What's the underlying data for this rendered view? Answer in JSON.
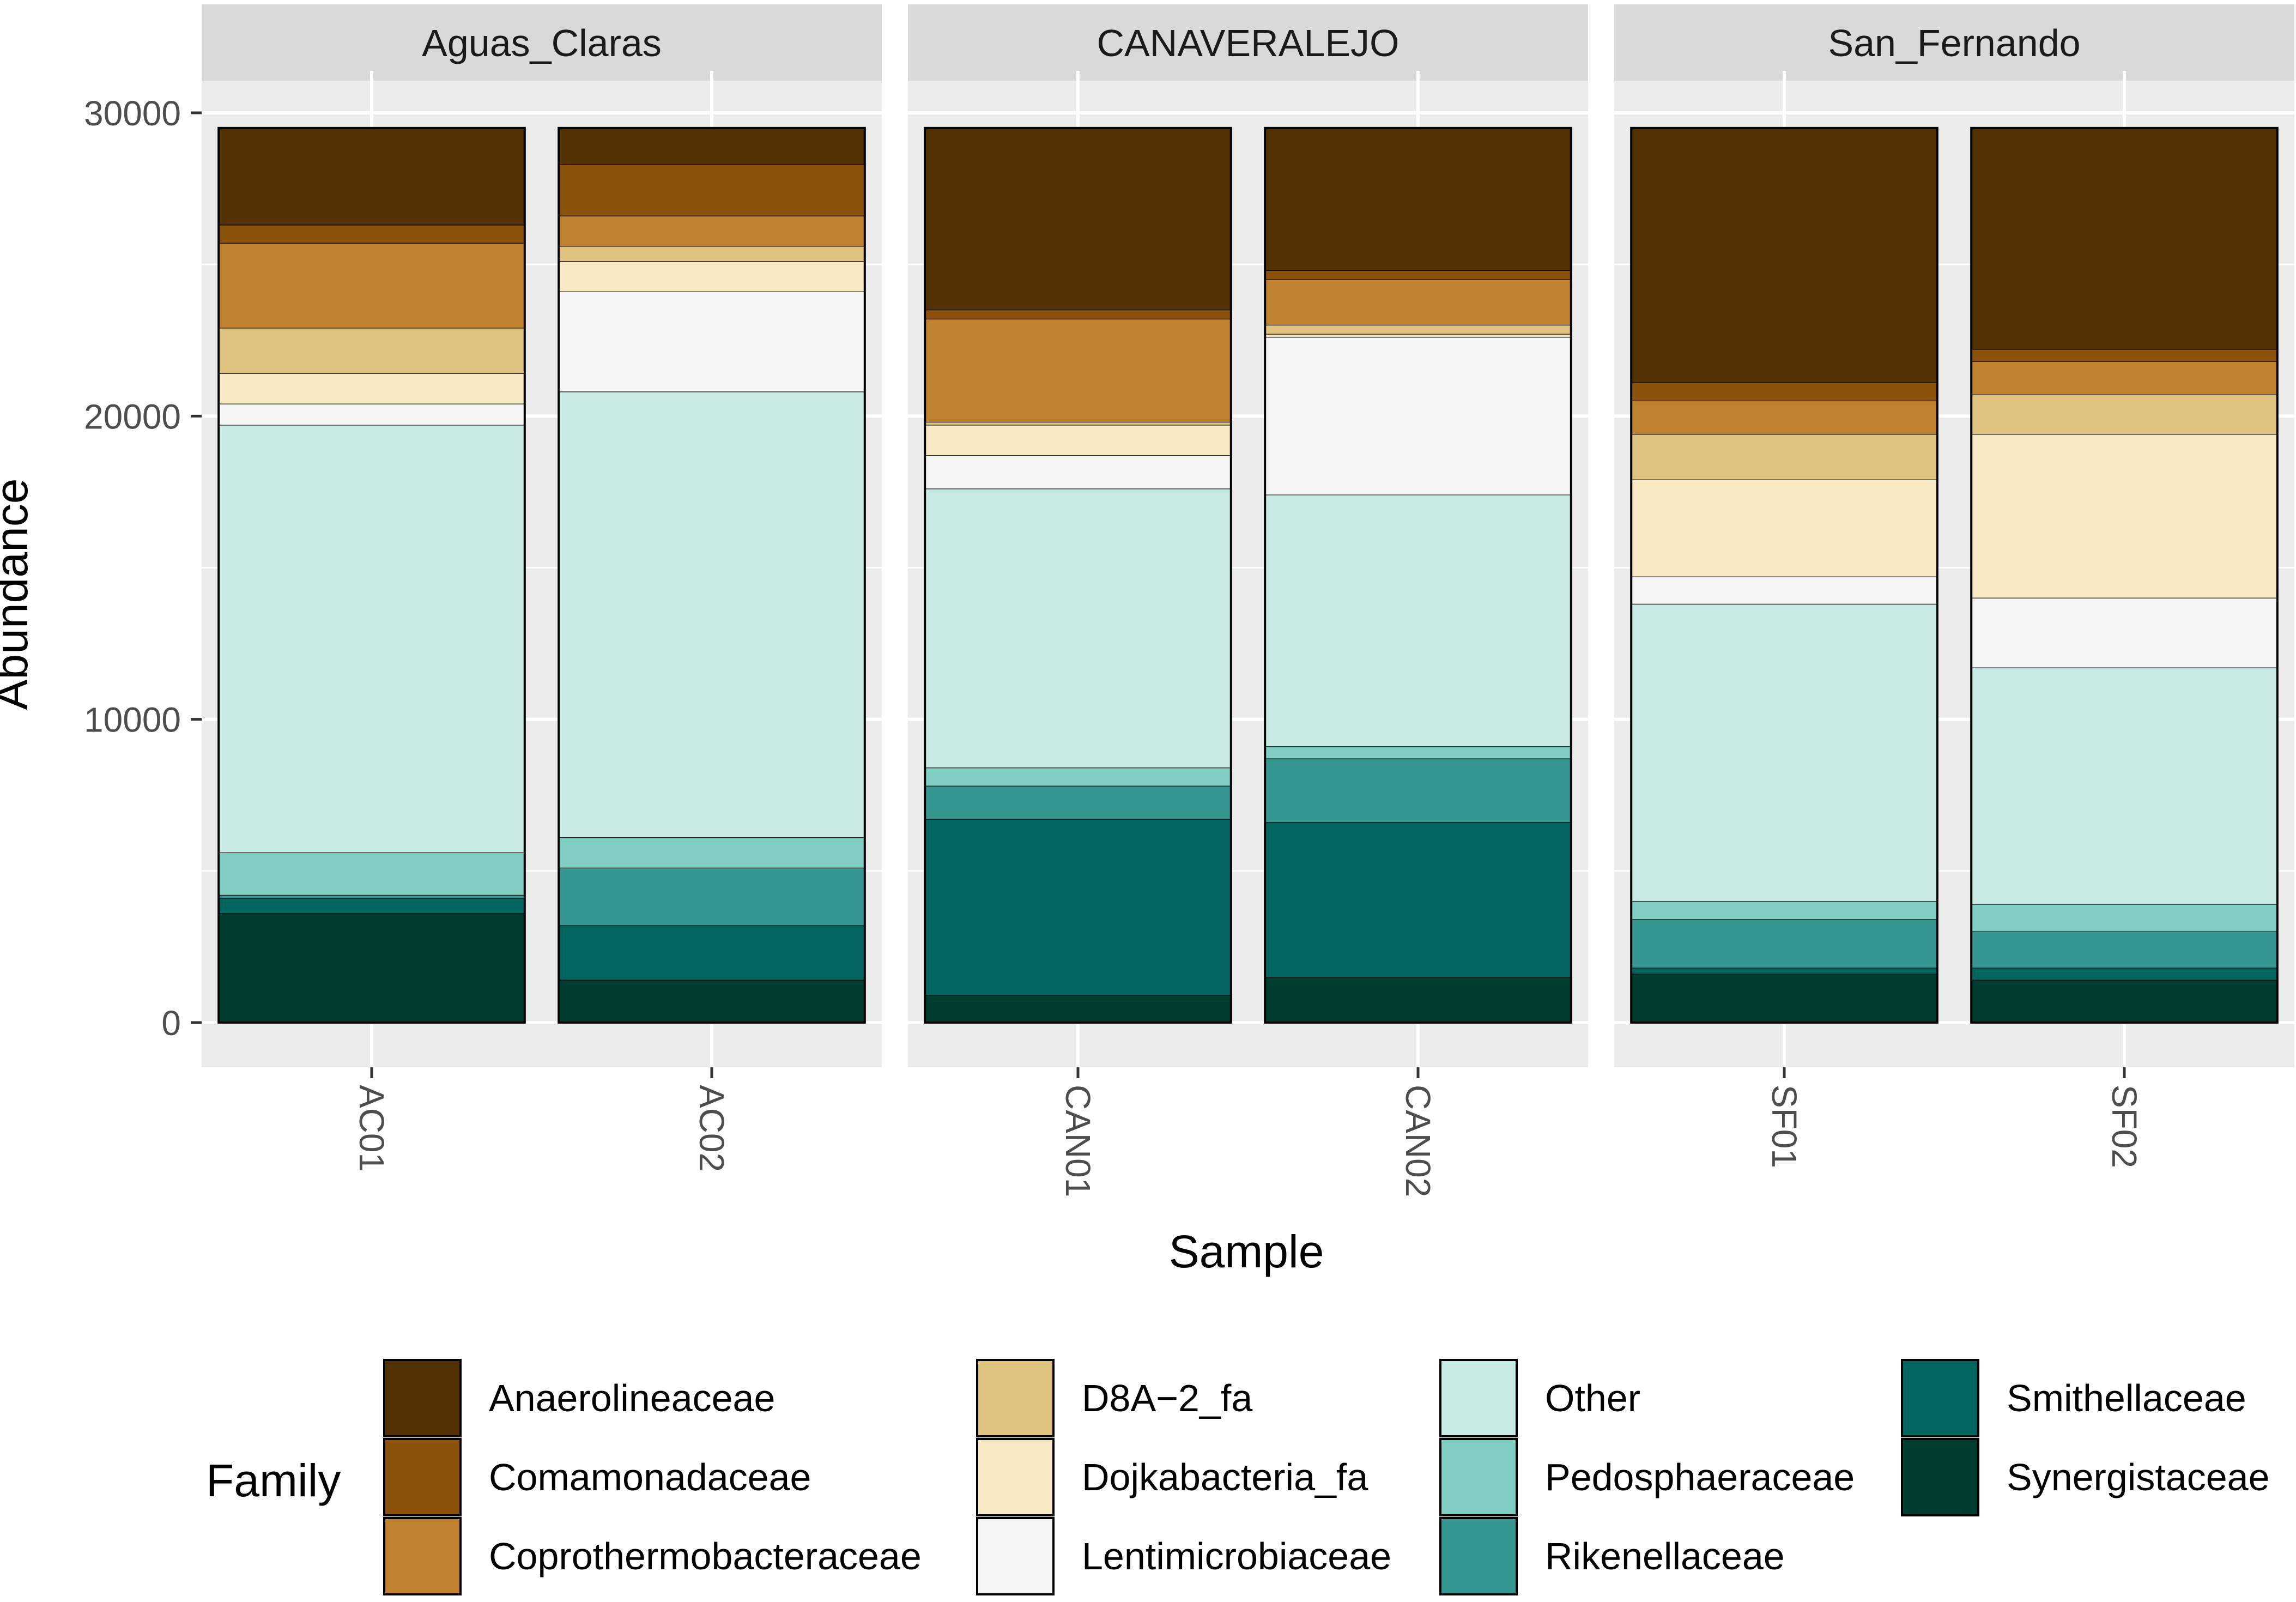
{
  "chart_data": {
    "type": "bar",
    "stacked": true,
    "faceted": true,
    "xlabel": "Sample",
    "ylabel": "Abundance",
    "ylim": [
      0,
      30000
    ],
    "yticks": [
      0,
      10000,
      20000,
      30000
    ],
    "grid": true,
    "legend": {
      "title": "Family",
      "position": "bottom"
    },
    "families": [
      "Synergistaceae",
      "Smithellaceae",
      "Rikenellaceae",
      "Pedosphaeraceae",
      "Other",
      "Lentimicrobiaceae",
      "Dojkabacteria_fa",
      "D8A−2_fa",
      "Coprothermobacteraceae",
      "Comamonadaceae",
      "Anaerolineaceae"
    ],
    "legend_order": [
      "Anaerolineaceae",
      "Comamonadaceae",
      "Coprothermobacteraceae",
      "D8A−2_fa",
      "Dojkabacteria_fa",
      "Lentimicrobiaceae",
      "Other",
      "Pedosphaeraceae",
      "Rikenellaceae",
      "Smithellaceae",
      "Synergistaceae"
    ],
    "colors": {
      "Anaerolineaceae": "#543005",
      "Comamonadaceae": "#8C510A",
      "Coprothermobacteraceae": "#BF812D",
      "D8A−2_fa": "#DFC27D",
      "Dojkabacteria_fa": "#F6E8C3",
      "Lentimicrobiaceae": "#F5F5F5",
      "Other": "#C7EAE5",
      "Pedosphaeraceae": "#80CDC1",
      "Rikenellaceae": "#35978F",
      "Smithellaceae": "#01665E",
      "Synergistaceae": "#003C30"
    },
    "facets": [
      {
        "name": "Aguas_Claras",
        "samples": [
          {
            "name": "AC01",
            "values": {
              "Synergistaceae": 3600,
              "Smithellaceae": 500,
              "Rikenellaceae": 100,
              "Pedosphaeraceae": 1400,
              "Other": 14100,
              "Lentimicrobiaceae": 700,
              "Dojkabacteria_fa": 1000,
              "D8A−2_fa": 1500,
              "Coprothermobacteraceae": 2800,
              "Comamonadaceae": 600,
              "Anaerolineaceae": 3200
            }
          },
          {
            "name": "AC02",
            "values": {
              "Synergistaceae": 1400,
              "Smithellaceae": 1800,
              "Rikenellaceae": 1900,
              "Pedosphaeraceae": 1000,
              "Other": 14700,
              "Lentimicrobiaceae": 3300,
              "Dojkabacteria_fa": 1000,
              "D8A−2_fa": 500,
              "Coprothermobacteraceae": 1000,
              "Comamonadaceae": 1700,
              "Anaerolineaceae": 1200
            }
          }
        ]
      },
      {
        "name": "CANAVERALEJO",
        "samples": [
          {
            "name": "CAN01",
            "values": {
              "Synergistaceae": 900,
              "Smithellaceae": 5800,
              "Rikenellaceae": 1100,
              "Pedosphaeraceae": 600,
              "Other": 9200,
              "Lentimicrobiaceae": 1100,
              "Dojkabacteria_fa": 1000,
              "D8A−2_fa": 100,
              "Coprothermobacteraceae": 3400,
              "Comamonadaceae": 300,
              "Anaerolineaceae": 6000
            }
          },
          {
            "name": "CAN02",
            "values": {
              "Synergistaceae": 1500,
              "Smithellaceae": 5100,
              "Rikenellaceae": 2100,
              "Pedosphaeraceae": 400,
              "Other": 8300,
              "Lentimicrobiaceae": 5200,
              "Dojkabacteria_fa": 100,
              "D8A−2_fa": 300,
              "Coprothermobacteraceae": 1500,
              "Comamonadaceae": 300,
              "Anaerolineaceae": 4700
            }
          }
        ]
      },
      {
        "name": "San_Fernando",
        "samples": [
          {
            "name": "SF01",
            "values": {
              "Synergistaceae": 1600,
              "Smithellaceae": 200,
              "Rikenellaceae": 1600,
              "Pedosphaeraceae": 600,
              "Other": 9800,
              "Lentimicrobiaceae": 900,
              "Dojkabacteria_fa": 3200,
              "D8A−2_fa": 1500,
              "Coprothermobacteraceae": 1100,
              "Comamonadaceae": 600,
              "Anaerolineaceae": 8400
            }
          },
          {
            "name": "SF02",
            "values": {
              "Synergistaceae": 1400,
              "Smithellaceae": 400,
              "Rikenellaceae": 1200,
              "Pedosphaeraceae": 900,
              "Other": 7800,
              "Lentimicrobiaceae": 2300,
              "Dojkabacteria_fa": 5400,
              "D8A−2_fa": 1300,
              "Coprothermobacteraceae": 1100,
              "Comamonadaceae": 400,
              "Anaerolineaceae": 7300
            }
          }
        ]
      }
    ]
  }
}
